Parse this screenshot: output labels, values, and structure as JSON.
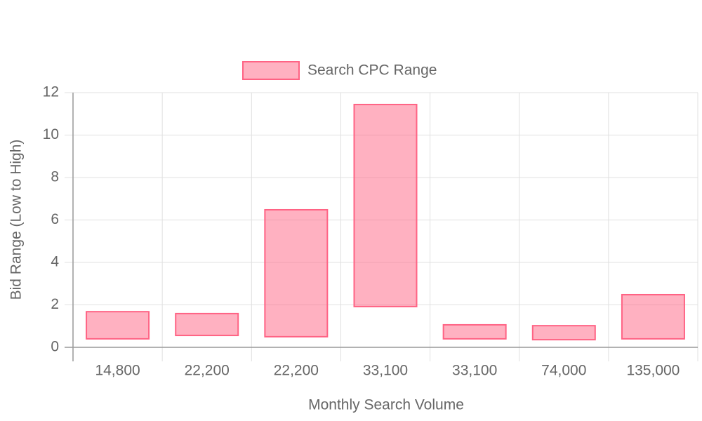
{
  "chart_data": {
    "type": "floating-bar",
    "x_label": "Monthly Search Volume",
    "y_label": "Bid Range (Low to High)",
    "categories": [
      "14,800",
      "22,200",
      "22,200",
      "33,100",
      "33,100",
      "74,000",
      "135,000"
    ],
    "series": [
      {
        "name": "Search CPC Range",
        "color": "rgb(255, 99, 132)",
        "fill": "rgba(255, 99, 132, 0.5)",
        "low": [
          0.4,
          0.56,
          0.5,
          1.92,
          0.4,
          0.36,
          0.4
        ],
        "high": [
          1.68,
          1.59,
          6.48,
          11.44,
          1.06,
          1.02,
          2.48
        ]
      }
    ],
    "ylim": [
      0,
      12
    ],
    "yticks": [
      0,
      2,
      4,
      6,
      8,
      10,
      12
    ],
    "grid": true,
    "legend": "top"
  }
}
